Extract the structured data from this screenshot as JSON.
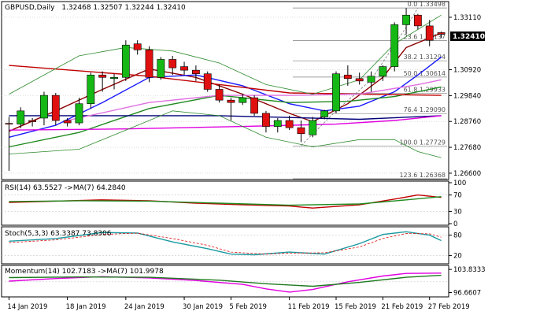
{
  "header": {
    "symbol": "GBPUSD,Daily",
    "ohlc": "1.32468 1.32507 1.32244 1.32410"
  },
  "colors": {
    "background": "#ffffff",
    "grid": "#c8c8c8",
    "axis": "#000000",
    "bull": "#15b815",
    "bear": "#e01010",
    "wick": "#000000",
    "ema_fast": "#8b0000",
    "ema_mid": "#1a1aff",
    "ema_slow": "#1f8a1f",
    "ma_long": "#c00000",
    "ma_navy": "#00007a",
    "ma_magenta": "#e000e0",
    "ma_pink": "#e070e0",
    "bollinger": "#2d8a2d",
    "fib": "#7f7f7f",
    "rsi": "#c00000",
    "rsi_ma": "#1f8a1f",
    "stoch_k": "#1a9aa0",
    "stoch_d": "#e01010",
    "momentum": "#e000e0",
    "momentum_ma": "#1f7a1f",
    "price_label_bg": "#000000",
    "price_label_text": "#ffffff"
  },
  "chart_data": [
    {
      "type": "candlestick",
      "title": "GBPUSD,Daily",
      "timeframe": "Daily",
      "x_tick_labels": [
        "14 Jan 2019",
        "18 Jan 2019",
        "24 Jan 2019",
        "30 Jan 2019",
        "5 Feb 2019",
        "11 Feb 2019",
        "15 Feb 2019",
        "21 Feb 2019",
        "27 Feb 2019"
      ],
      "y_tick_labels": [
        "1.33110",
        "1.30920",
        "1.29840",
        "1.28760",
        "1.27680",
        "1.26600"
      ],
      "ylim": [
        1.264,
        1.337
      ],
      "current_price": "1.32410",
      "candles": [
        {
          "o": 1.2868,
          "h": 1.2895,
          "l": 1.267,
          "c": 1.2865
        },
        {
          "o": 1.2865,
          "h": 1.2935,
          "l": 1.2848,
          "c": 1.292
        },
        {
          "o": 1.288,
          "h": 1.289,
          "l": 1.2855,
          "c": 1.2875
        },
        {
          "o": 1.289,
          "h": 1.3,
          "l": 1.286,
          "c": 1.2985
        },
        {
          "o": 1.2985,
          "h": 1.2995,
          "l": 1.286,
          "c": 1.288
        },
        {
          "o": 1.288,
          "h": 1.289,
          "l": 1.2855,
          "c": 1.287
        },
        {
          "o": 1.287,
          "h": 1.2975,
          "l": 1.286,
          "c": 1.295
        },
        {
          "o": 1.295,
          "h": 1.308,
          "l": 1.293,
          "c": 1.307
        },
        {
          "o": 1.307,
          "h": 1.3085,
          "l": 1.3,
          "c": 1.306
        },
        {
          "o": 1.3055,
          "h": 1.3075,
          "l": 1.301,
          "c": 1.306
        },
        {
          "o": 1.306,
          "h": 1.3215,
          "l": 1.3045,
          "c": 1.3195
        },
        {
          "o": 1.32,
          "h": 1.3215,
          "l": 1.3155,
          "c": 1.3175
        },
        {
          "o": 1.3175,
          "h": 1.319,
          "l": 1.304,
          "c": 1.306
        },
        {
          "o": 1.306,
          "h": 1.3145,
          "l": 1.305,
          "c": 1.3135
        },
        {
          "o": 1.3135,
          "h": 1.315,
          "l": 1.307,
          "c": 1.31
        },
        {
          "o": 1.3105,
          "h": 1.3125,
          "l": 1.307,
          "c": 1.309
        },
        {
          "o": 1.309,
          "h": 1.311,
          "l": 1.3045,
          "c": 1.3075
        },
        {
          "o": 1.3075,
          "h": 1.3085,
          "l": 1.3,
          "c": 1.301
        },
        {
          "o": 1.301,
          "h": 1.303,
          "l": 1.2955,
          "c": 1.2965
        },
        {
          "o": 1.2965,
          "h": 1.2975,
          "l": 1.288,
          "c": 1.2955
        },
        {
          "o": 1.2955,
          "h": 1.299,
          "l": 1.2945,
          "c": 1.2975
        },
        {
          "o": 1.2975,
          "h": 1.2985,
          "l": 1.29,
          "c": 1.291
        },
        {
          "o": 1.291,
          "h": 1.292,
          "l": 1.283,
          "c": 1.2855
        },
        {
          "o": 1.2855,
          "h": 1.289,
          "l": 1.283,
          "c": 1.288
        },
        {
          "o": 1.288,
          "h": 1.29,
          "l": 1.284,
          "c": 1.285
        },
        {
          "o": 1.285,
          "h": 1.288,
          "l": 1.279,
          "c": 1.2825
        },
        {
          "o": 1.282,
          "h": 1.2895,
          "l": 1.281,
          "c": 1.288
        },
        {
          "o": 1.2895,
          "h": 1.2925,
          "l": 1.2885,
          "c": 1.292
        },
        {
          "o": 1.292,
          "h": 1.3085,
          "l": 1.291,
          "c": 1.3075
        },
        {
          "o": 1.307,
          "h": 1.311,
          "l": 1.3025,
          "c": 1.3055
        },
        {
          "o": 1.3055,
          "h": 1.308,
          "l": 1.303,
          "c": 1.3045
        },
        {
          "o": 1.304,
          "h": 1.3085,
          "l": 1.3,
          "c": 1.3065
        },
        {
          "o": 1.3065,
          "h": 1.311,
          "l": 1.3045,
          "c": 1.3105
        },
        {
          "o": 1.3105,
          "h": 1.329,
          "l": 1.3085,
          "c": 1.328
        },
        {
          "o": 1.328,
          "h": 1.335,
          "l": 1.324,
          "c": 1.332
        },
        {
          "o": 1.332,
          "h": 1.3325,
          "l": 1.326,
          "c": 1.3275
        },
        {
          "o": 1.3275,
          "h": 1.33,
          "l": 1.319,
          "c": 1.3215
        },
        {
          "o": 1.3247,
          "h": 1.3251,
          "l": 1.3224,
          "c": 1.3241
        }
      ],
      "fibonacci": [
        {
          "label": "0.0 1.33498",
          "price": 1.33498
        },
        {
          "label": "23.6 1.32137",
          "price": 1.32137
        },
        {
          "label": "38.2 1.31294",
          "price": 1.31294
        },
        {
          "label": "50.0 1.30614",
          "price": 1.30614
        },
        {
          "label": "61.8 1.29933",
          "price": 1.29933
        },
        {
          "label": "76.4 1.29090",
          "price": 1.2909
        },
        {
          "label": "100.0 1.27729",
          "price": 1.27729
        },
        {
          "label": "123.6 1.26368",
          "price": 1.26368
        }
      ],
      "series": [
        {
          "key": "ema_fast",
          "points": [
            [
              0,
              1.2835
            ],
            [
              4,
              1.292
            ],
            [
              8,
              1.301
            ],
            [
              12,
              1.3095
            ],
            [
              16,
              1.306
            ],
            [
              20,
              1.299
            ],
            [
              24,
              1.291
            ],
            [
              26,
              1.2875
            ],
            [
              29,
              1.295
            ],
            [
              32,
              1.306
            ],
            [
              34,
              1.3185
            ],
            [
              37,
              1.3245
            ]
          ]
        },
        {
          "key": "ema_mid",
          "points": [
            [
              0,
              1.281
            ],
            [
              4,
              1.286
            ],
            [
              8,
              1.2955
            ],
            [
              12,
              1.306
            ],
            [
              16,
              1.307
            ],
            [
              20,
              1.3025
            ],
            [
              24,
              1.295
            ],
            [
              27,
              1.292
            ],
            [
              30,
              1.294
            ],
            [
              33,
              1.3
            ],
            [
              35,
              1.307
            ],
            [
              37,
              1.3145
            ]
          ]
        },
        {
          "key": "ema_slow",
          "points": [
            [
              0,
              1.277
            ],
            [
              6,
              1.283
            ],
            [
              12,
              1.293
            ],
            [
              18,
              1.2985
            ],
            [
              24,
              1.2955
            ],
            [
              29,
              1.296
            ],
            [
              33,
              1.298
            ],
            [
              37,
              1.302
            ]
          ]
        },
        {
          "key": "ma_long",
          "points": [
            [
              0,
              1.311
            ],
            [
              12,
              1.3065
            ],
            [
              24,
              1.2995
            ],
            [
              37,
              1.2985
            ]
          ]
        },
        {
          "key": "ma_navy",
          "points": [
            [
              0,
              1.29
            ],
            [
              18,
              1.29
            ],
            [
              30,
              1.2885
            ],
            [
              37,
              1.29
            ]
          ]
        },
        {
          "key": "ma_magenta",
          "points": [
            [
              0,
              1.284
            ],
            [
              10,
              1.2845
            ],
            [
              20,
              1.2855
            ],
            [
              28,
              1.2865
            ],
            [
              33,
              1.288
            ],
            [
              37,
              1.29
            ]
          ]
        },
        {
          "key": "ma_pink",
          "points": [
            [
              5,
              1.288
            ],
            [
              12,
              1.2955
            ],
            [
              18,
              1.2985
            ],
            [
              24,
              1.2985
            ],
            [
              30,
              1.299
            ],
            [
              35,
              1.303
            ],
            [
              37,
              1.305
            ]
          ]
        },
        {
          "key": "bb_upper",
          "points": [
            [
              0,
              1.299
            ],
            [
              6,
              1.315
            ],
            [
              10,
              1.3185
            ],
            [
              14,
              1.317
            ],
            [
              18,
              1.312
            ],
            [
              22,
              1.303
            ],
            [
              26,
              1.299
            ],
            [
              30,
              1.305
            ],
            [
              33,
              1.32
            ],
            [
              37,
              1.332
            ]
          ]
        },
        {
          "key": "bb_lower",
          "points": [
            [
              0,
              1.274
            ],
            [
              6,
              1.276
            ],
            [
              10,
              1.284
            ],
            [
              14,
              1.292
            ],
            [
              18,
              1.29
            ],
            [
              22,
              1.281
            ],
            [
              26,
              1.277
            ],
            [
              30,
              1.28
            ],
            [
              33,
              1.28
            ],
            [
              35,
              1.275
            ],
            [
              37,
              1.2725
            ]
          ]
        },
        {
          "key": "dashed_up",
          "dashed": true,
          "points": [
            [
              25,
              1.2775
            ],
            [
              28,
              1.292
            ],
            [
              31,
              1.305
            ],
            [
              34,
              1.327
            ],
            [
              35,
              1.335
            ]
          ]
        }
      ]
    },
    {
      "type": "line",
      "title": "RSI(14) 63.5527  ->MA(7) 64.2840",
      "y_tick_labels": [
        "100",
        "70",
        "30",
        "0"
      ],
      "ylim": [
        0,
        100
      ],
      "series": [
        {
          "key": "rsi",
          "points": [
            [
              0,
              52
            ],
            [
              4,
              55
            ],
            [
              8,
              58
            ],
            [
              12,
              56
            ],
            [
              16,
              50
            ],
            [
              20,
              46
            ],
            [
              24,
              43
            ],
            [
              26,
              38
            ],
            [
              30,
              46
            ],
            [
              33,
              60
            ],
            [
              35,
              70
            ],
            [
              37,
              64
            ]
          ]
        },
        {
          "key": "rsi_ma",
          "points": [
            [
              0,
              54
            ],
            [
              6,
              56
            ],
            [
              12,
              55
            ],
            [
              18,
              50
            ],
            [
              24,
              45
            ],
            [
              30,
              48
            ],
            [
              34,
              58
            ],
            [
              37,
              66
            ]
          ]
        }
      ]
    },
    {
      "type": "line",
      "title": "Stoch(5,3,3) 63.3387 73.8306",
      "y_tick_labels": [
        "80",
        "20"
      ],
      "ylim": [
        0,
        100
      ],
      "series": [
        {
          "key": "stoch_k",
          "points": [
            [
              0,
              62
            ],
            [
              4,
              70
            ],
            [
              8,
              88
            ],
            [
              11,
              86
            ],
            [
              14,
              60
            ],
            [
              17,
              40
            ],
            [
              19,
              24
            ],
            [
              21,
              22
            ],
            [
              24,
              30
            ],
            [
              27,
              24
            ],
            [
              30,
              55
            ],
            [
              32,
              82
            ],
            [
              34,
              90
            ],
            [
              36,
              80
            ],
            [
              37,
              64
            ]
          ]
        },
        {
          "key": "stoch_d",
          "dashed": true,
          "points": [
            [
              0,
              58
            ],
            [
              4,
              66
            ],
            [
              8,
              82
            ],
            [
              11,
              86
            ],
            [
              14,
              70
            ],
            [
              17,
              50
            ],
            [
              19,
              30
            ],
            [
              22,
              24
            ],
            [
              24,
              27
            ],
            [
              27,
              28
            ],
            [
              30,
              45
            ],
            [
              32,
              70
            ],
            [
              34,
              85
            ],
            [
              36,
              84
            ],
            [
              37,
              74
            ]
          ]
        }
      ]
    },
    {
      "type": "line",
      "title": "Momentum(14) 102.7183  ->MA(7) 101.9978",
      "y_tick_labels": [
        "103.8333",
        "96.6607"
      ],
      "ylim": [
        95.8,
        104.6
      ],
      "series": [
        {
          "key": "momentum",
          "points": [
            [
              0,
              100.2
            ],
            [
              4,
              101.0
            ],
            [
              8,
              101.6
            ],
            [
              12,
              101.2
            ],
            [
              16,
              100.4
            ],
            [
              20,
              99.2
            ],
            [
              22,
              97.8
            ],
            [
              24,
              96.8
            ],
            [
              26,
              97.6
            ],
            [
              29,
              100.0
            ],
            [
              32,
              101.8
            ],
            [
              34,
              102.6
            ],
            [
              37,
              102.7
            ]
          ]
        },
        {
          "key": "momentum_ma",
          "points": [
            [
              0,
              101.3
            ],
            [
              6,
              101.5
            ],
            [
              12,
              101.4
            ],
            [
              18,
              100.5
            ],
            [
              22,
              99.4
            ],
            [
              26,
              98.6
            ],
            [
              30,
              99.8
            ],
            [
              34,
              101.4
            ],
            [
              37,
              102.0
            ]
          ]
        }
      ]
    }
  ]
}
